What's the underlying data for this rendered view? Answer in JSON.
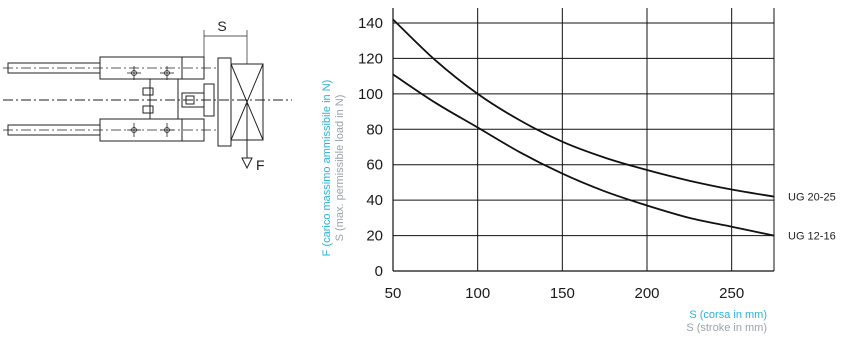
{
  "figure": {
    "force_label": "F",
    "stroke_label": "S"
  },
  "chart_data": {
    "type": "line",
    "title": "",
    "xlabel": "S (corsa in mm)",
    "xlabel_secondary": "S (stroke in mm)",
    "ylabel": "F (carico massimo ammissibile in N)",
    "ylabel_secondary": "S (max. permissible load in N)",
    "xlim": [
      50,
      275
    ],
    "ylim": [
      0,
      150
    ],
    "xticks": [
      50,
      100,
      150,
      200,
      250
    ],
    "yticks": [
      0,
      20,
      40,
      60,
      80,
      100,
      120,
      140
    ],
    "grid": true,
    "legend": "right, labels at line ends",
    "series": [
      {
        "name": "UG 20-25",
        "x": [
          50,
          75,
          100,
          125,
          150,
          175,
          200,
          225,
          250,
          275
        ],
        "y": [
          142,
          119,
          100,
          85,
          73,
          64,
          57,
          51,
          46,
          42
        ]
      },
      {
        "name": "UG 12-16",
        "x": [
          50,
          75,
          100,
          125,
          150,
          175,
          200,
          225,
          250,
          275
        ],
        "y": [
          111,
          95,
          81,
          67,
          55,
          45,
          37,
          30,
          25,
          20
        ]
      }
    ]
  }
}
